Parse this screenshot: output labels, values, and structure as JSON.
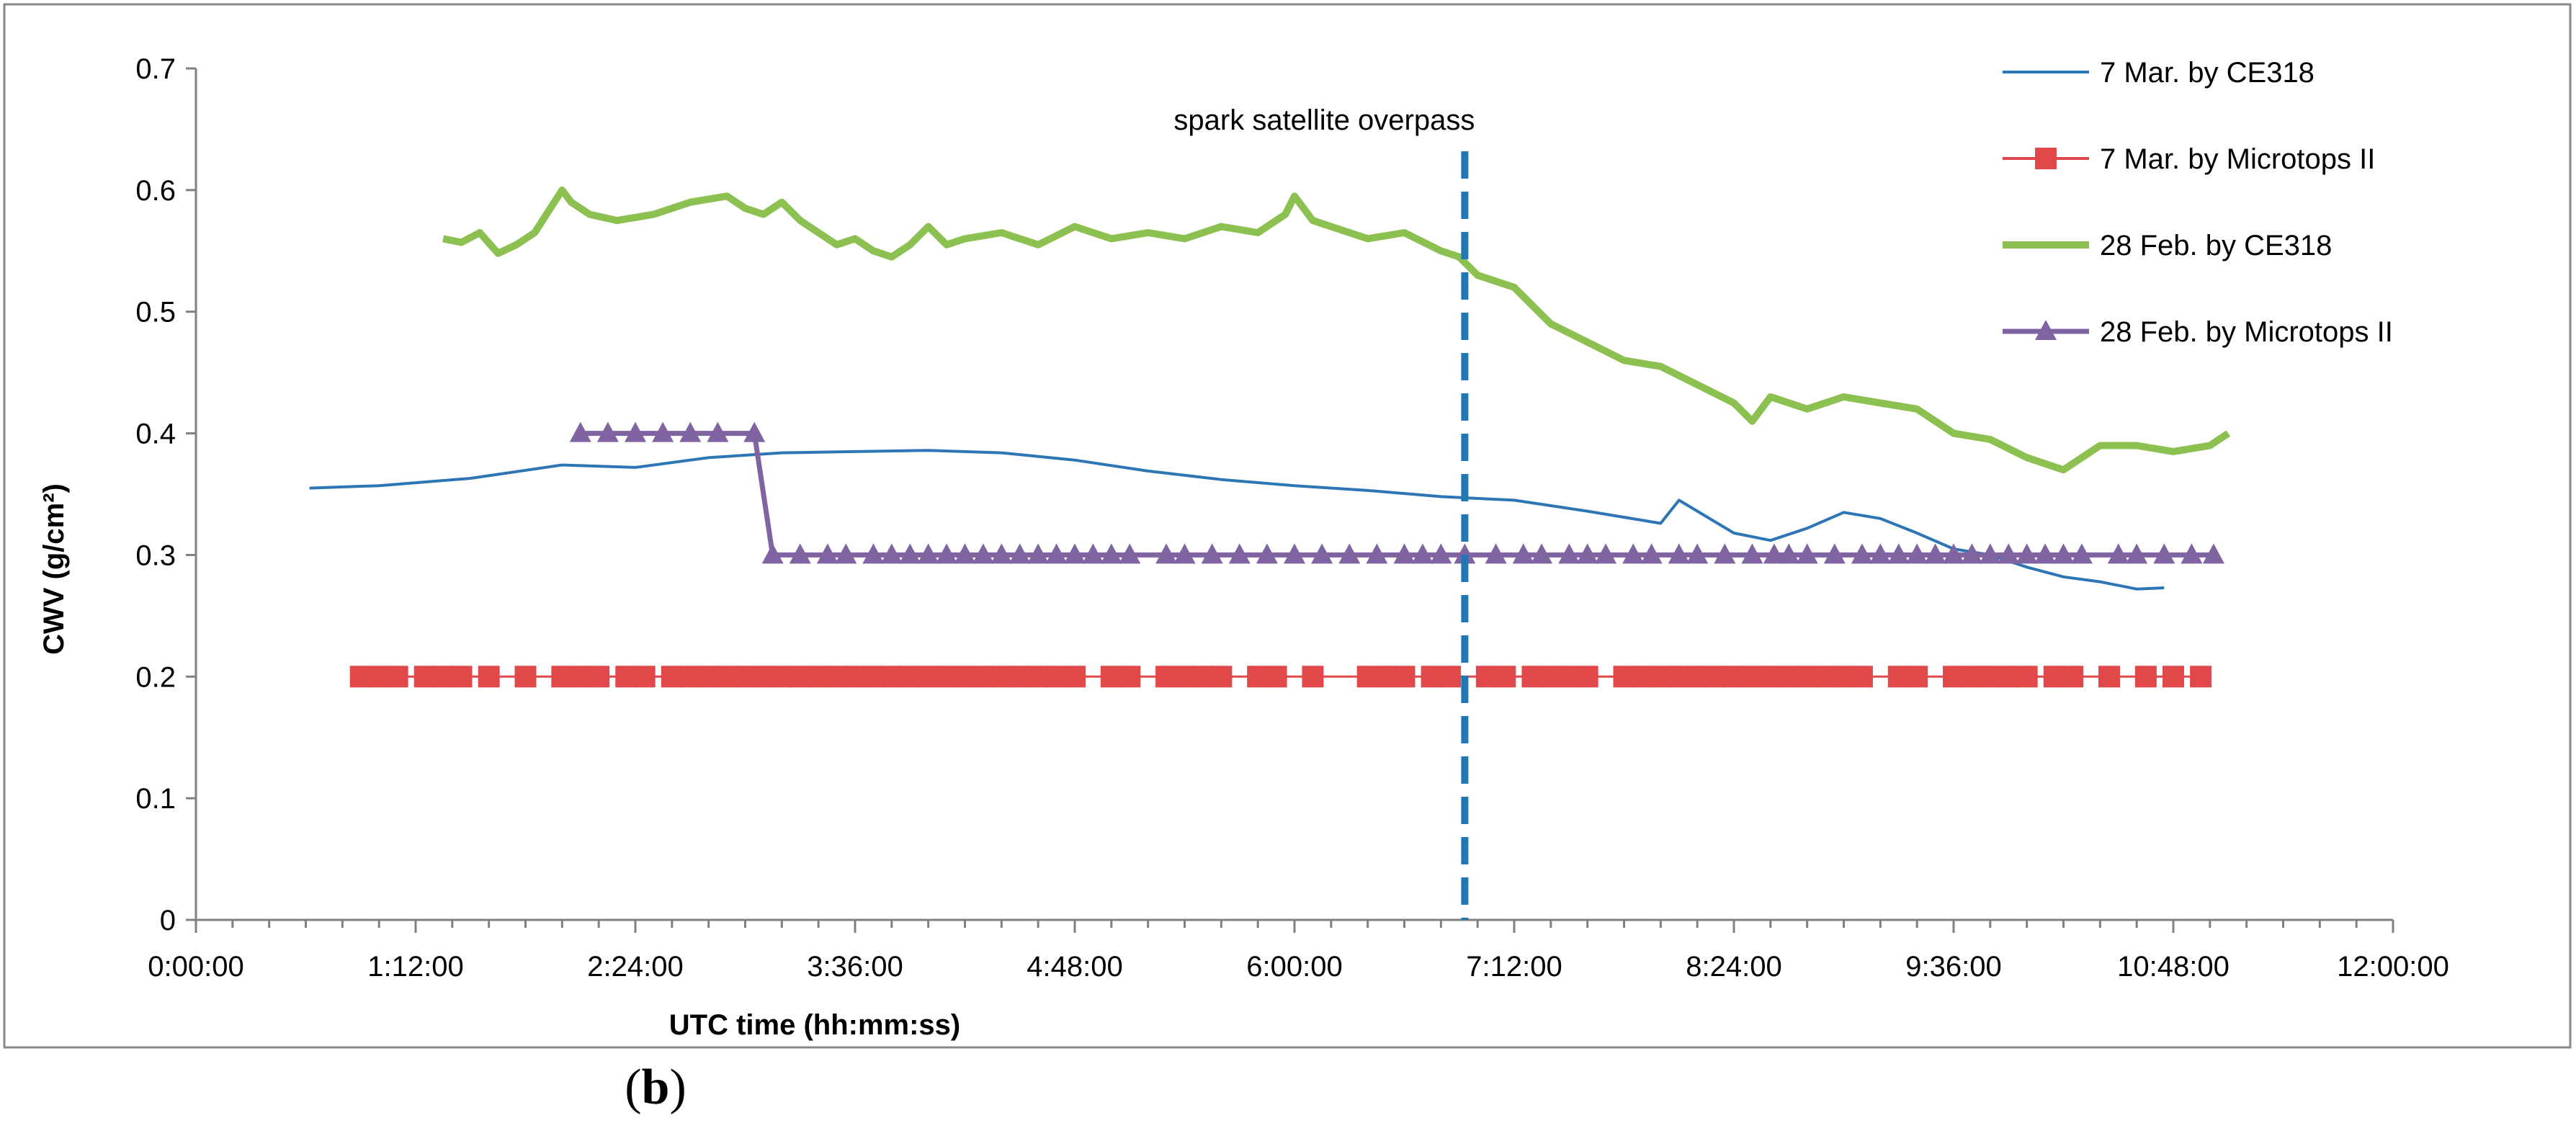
{
  "chart_data": {
    "type": "line",
    "title": "",
    "xlabel": "UTC time (hh:mm:ss)",
    "ylabel": "CWV (g/cm²)",
    "xlim_hours": [
      0,
      12
    ],
    "ylim": [
      0,
      0.7
    ],
    "x_tick_labels": [
      "0:00:00",
      "1:12:00",
      "2:24:00",
      "3:36:00",
      "4:48:00",
      "6:00:00",
      "7:12:00",
      "8:24:00",
      "9:36:00",
      "10:48:00",
      "12:00:00"
    ],
    "y_tick_labels": [
      "0",
      "0.1",
      "0.2",
      "0.3",
      "0.4",
      "0.5",
      "0.6",
      "0.7"
    ],
    "annotation": {
      "text": "spark satellite overpass",
      "x_hours": 6.93
    },
    "legend_position": "top-right",
    "series": [
      {
        "name": "7 Mar. by CE318",
        "color": "#2e75b6",
        "marker": "none",
        "x_hours": [
          0.62,
          1.0,
          1.5,
          2.0,
          2.4,
          2.8,
          3.2,
          3.6,
          4.0,
          4.4,
          4.8,
          5.2,
          5.6,
          6.0,
          6.4,
          6.8,
          7.2,
          7.6,
          8.0,
          8.1,
          8.4,
          8.6,
          8.8,
          9.0,
          9.2,
          9.4,
          9.6,
          9.8,
          10.0,
          10.2,
          10.4,
          10.6,
          10.75
        ],
        "values": [
          0.355,
          0.357,
          0.363,
          0.374,
          0.372,
          0.38,
          0.384,
          0.385,
          0.386,
          0.384,
          0.378,
          0.369,
          0.362,
          0.357,
          0.353,
          0.348,
          0.345,
          0.336,
          0.326,
          0.345,
          0.318,
          0.312,
          0.322,
          0.335,
          0.33,
          0.318,
          0.305,
          0.3,
          0.29,
          0.282,
          0.278,
          0.272,
          0.273
        ]
      },
      {
        "name": "7 Mar. by Microtops II",
        "color": "#e0484a",
        "marker": "square",
        "x_hours": [
          0.9,
          1.0,
          1.1,
          1.25,
          1.35,
          1.45,
          1.6,
          1.8,
          2.0,
          2.1,
          2.2,
          2.35,
          2.45,
          2.6,
          2.7,
          2.8,
          2.9,
          3.0,
          3.1,
          3.2,
          3.3,
          3.4,
          3.5,
          3.6,
          3.7,
          3.8,
          3.9,
          4.0,
          4.1,
          4.2,
          4.3,
          4.4,
          4.5,
          4.6,
          4.7,
          4.8,
          5.0,
          5.1,
          5.3,
          5.4,
          5.5,
          5.6,
          5.8,
          5.9,
          6.1,
          6.4,
          6.5,
          6.6,
          6.75,
          6.85,
          7.05,
          7.15,
          7.3,
          7.4,
          7.5,
          7.6,
          7.8,
          7.9,
          8.0,
          8.1,
          8.2,
          8.3,
          8.4,
          8.5,
          8.6,
          8.7,
          8.8,
          8.9,
          9.0,
          9.1,
          9.3,
          9.4,
          9.6,
          9.7,
          9.8,
          9.9,
          10.0,
          10.15,
          10.25,
          10.45,
          10.65,
          10.8,
          10.95
        ],
        "values": [
          0.2,
          0.2,
          0.2,
          0.2,
          0.2,
          0.2,
          0.2,
          0.2,
          0.2,
          0.2,
          0.2,
          0.2,
          0.2,
          0.2,
          0.2,
          0.2,
          0.2,
          0.2,
          0.2,
          0.2,
          0.2,
          0.2,
          0.2,
          0.2,
          0.2,
          0.2,
          0.2,
          0.2,
          0.2,
          0.2,
          0.2,
          0.2,
          0.2,
          0.2,
          0.2,
          0.2,
          0.2,
          0.2,
          0.2,
          0.2,
          0.2,
          0.2,
          0.2,
          0.2,
          0.2,
          0.2,
          0.2,
          0.2,
          0.2,
          0.2,
          0.2,
          0.2,
          0.2,
          0.2,
          0.2,
          0.2,
          0.2,
          0.2,
          0.2,
          0.2,
          0.2,
          0.2,
          0.2,
          0.2,
          0.2,
          0.2,
          0.2,
          0.2,
          0.2,
          0.2,
          0.2,
          0.2,
          0.2,
          0.2,
          0.2,
          0.2,
          0.2,
          0.2,
          0.2,
          0.2,
          0.2,
          0.2,
          0.2
        ]
      },
      {
        "name": "28 Feb. by CE318",
        "color": "#8cc152",
        "marker": "none",
        "x_hours": [
          1.35,
          1.45,
          1.55,
          1.65,
          1.75,
          1.85,
          2.0,
          2.05,
          2.15,
          2.3,
          2.5,
          2.7,
          2.9,
          3.0,
          3.1,
          3.2,
          3.3,
          3.4,
          3.5,
          3.6,
          3.7,
          3.8,
          3.9,
          4.0,
          4.1,
          4.2,
          4.4,
          4.6,
          4.8,
          5.0,
          5.2,
          5.4,
          5.6,
          5.8,
          5.95,
          6.0,
          6.1,
          6.2,
          6.4,
          6.6,
          6.8,
          6.9,
          7.0,
          7.2,
          7.4,
          7.6,
          7.8,
          8.0,
          8.2,
          8.4,
          8.5,
          8.6,
          8.7,
          8.8,
          9.0,
          9.2,
          9.4,
          9.6,
          9.8,
          10.0,
          10.2,
          10.4,
          10.6,
          10.8,
          11.0,
          11.1
        ],
        "values": [
          0.56,
          0.557,
          0.565,
          0.548,
          0.555,
          0.565,
          0.6,
          0.59,
          0.58,
          0.575,
          0.58,
          0.59,
          0.595,
          0.585,
          0.58,
          0.59,
          0.575,
          0.565,
          0.555,
          0.56,
          0.55,
          0.545,
          0.555,
          0.57,
          0.555,
          0.56,
          0.565,
          0.555,
          0.57,
          0.56,
          0.565,
          0.56,
          0.57,
          0.565,
          0.58,
          0.595,
          0.575,
          0.57,
          0.56,
          0.565,
          0.55,
          0.545,
          0.53,
          0.52,
          0.49,
          0.475,
          0.46,
          0.455,
          0.44,
          0.425,
          0.41,
          0.43,
          0.425,
          0.42,
          0.43,
          0.425,
          0.42,
          0.4,
          0.395,
          0.38,
          0.37,
          0.39,
          0.39,
          0.385,
          0.39,
          0.4
        ]
      },
      {
        "name": "28 Feb. by Microtops II",
        "color": "#8064a2",
        "marker": "triangle",
        "x_hours": [
          2.1,
          2.25,
          2.4,
          2.55,
          2.7,
          2.85,
          3.05,
          3.15,
          3.3,
          3.45,
          3.55,
          3.7,
          3.8,
          3.9,
          4.0,
          4.1,
          4.2,
          4.3,
          4.4,
          4.5,
          4.6,
          4.7,
          4.8,
          4.9,
          5.0,
          5.1,
          5.3,
          5.4,
          5.55,
          5.7,
          5.85,
          6.0,
          6.15,
          6.3,
          6.45,
          6.6,
          6.7,
          6.8,
          6.93,
          7.1,
          7.25,
          7.35,
          7.5,
          7.6,
          7.7,
          7.85,
          7.95,
          8.1,
          8.2,
          8.35,
          8.5,
          8.62,
          8.7,
          8.8,
          8.95,
          9.1,
          9.2,
          9.3,
          9.4,
          9.5,
          9.6,
          9.7,
          9.8,
          9.9,
          10.0,
          10.1,
          10.2,
          10.3,
          10.5,
          10.6,
          10.75,
          10.9,
          11.02
        ],
        "values": [
          0.4,
          0.4,
          0.4,
          0.4,
          0.4,
          0.4,
          0.4,
          0.3,
          0.3,
          0.3,
          0.3,
          0.3,
          0.3,
          0.3,
          0.3,
          0.3,
          0.3,
          0.3,
          0.3,
          0.3,
          0.3,
          0.3,
          0.3,
          0.3,
          0.3,
          0.3,
          0.3,
          0.3,
          0.3,
          0.3,
          0.3,
          0.3,
          0.3,
          0.3,
          0.3,
          0.3,
          0.3,
          0.3,
          0.3,
          0.3,
          0.3,
          0.3,
          0.3,
          0.3,
          0.3,
          0.3,
          0.3,
          0.3,
          0.3,
          0.3,
          0.3,
          0.3,
          0.3,
          0.3,
          0.3,
          0.3,
          0.3,
          0.3,
          0.3,
          0.3,
          0.3,
          0.3,
          0.3,
          0.3,
          0.3,
          0.3,
          0.3,
          0.3,
          0.3,
          0.3,
          0.3,
          0.3,
          0.3
        ]
      }
    ]
  },
  "panel_label": "b"
}
